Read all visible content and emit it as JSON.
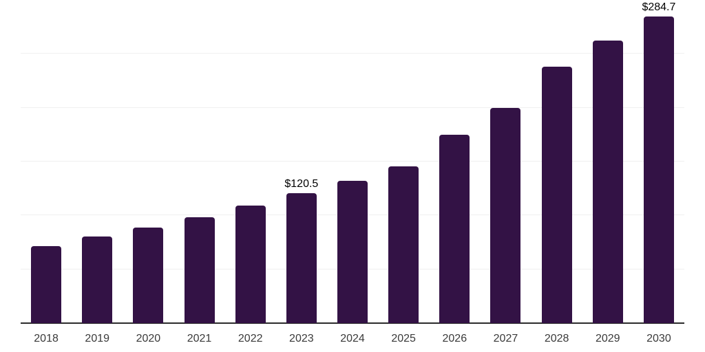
{
  "chart_data": {
    "type": "bar",
    "title": "",
    "xlabel": "",
    "ylabel": "",
    "categories": [
      "2018",
      "2019",
      "2020",
      "2021",
      "2022",
      "2023",
      "2024",
      "2025",
      "2026",
      "2027",
      "2028",
      "2029",
      "2030"
    ],
    "values": [
      71.5,
      80.2,
      88.9,
      98.3,
      109.3,
      120.5,
      132.1,
      145.3,
      174.6,
      199.8,
      238.1,
      262.5,
      284.7
    ],
    "labeled_points": [
      {
        "category": "2023",
        "label": "$120.5"
      },
      {
        "category": "2030",
        "label": "$284.7"
      }
    ],
    "ylim": [
      0,
      300
    ],
    "gridlines": [
      50,
      100,
      150,
      200,
      250,
      300
    ],
    "grid": "horizontal-only",
    "legend_position": "none",
    "colors": {
      "bar": "#331245",
      "axis_line": "#2b2b2b",
      "gridline": "#f0f0f0",
      "value_label": "#000000",
      "tick_label": "#3a3a3a",
      "background": "#ffffff"
    }
  }
}
